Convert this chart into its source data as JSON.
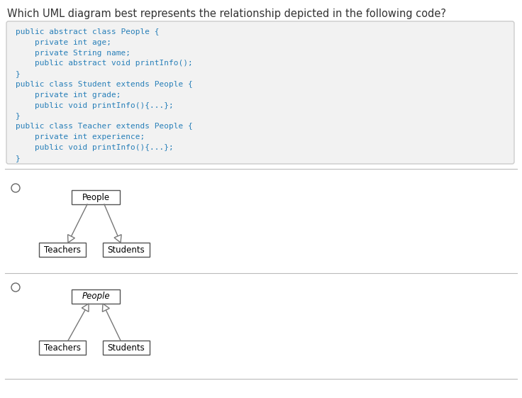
{
  "title": "Which UML diagram best represents the relationship depicted in the following code?",
  "title_color": "#333333",
  "title_fontsize": 10.5,
  "code_lines": [
    "public abstract class People {",
    "    private int age;",
    "    private String name;",
    "    public abstract void printInfo();",
    "}",
    "public class Student extends People {",
    "    private int grade;",
    "    public void printInfo(){...};",
    "}",
    "public class Teacher extends People {",
    "    private int experience;",
    "    public void printInfo(){...};",
    "}"
  ],
  "code_color": "#2980b9",
  "code_bg": "#f2f2f2",
  "bg_color": "#ffffff",
  "diagram1": {
    "people_label": "People",
    "teachers_label": "Teachers",
    "students_label": "Students",
    "people_italic": false
  },
  "diagram2": {
    "people_label": "People",
    "teachers_label": "Teachers",
    "students_label": "Students",
    "people_italic": true
  },
  "divider_color": "#bbbbbb",
  "radio_color": "#666666",
  "box_edge_color": "#555555",
  "box_text_color": "#000000"
}
